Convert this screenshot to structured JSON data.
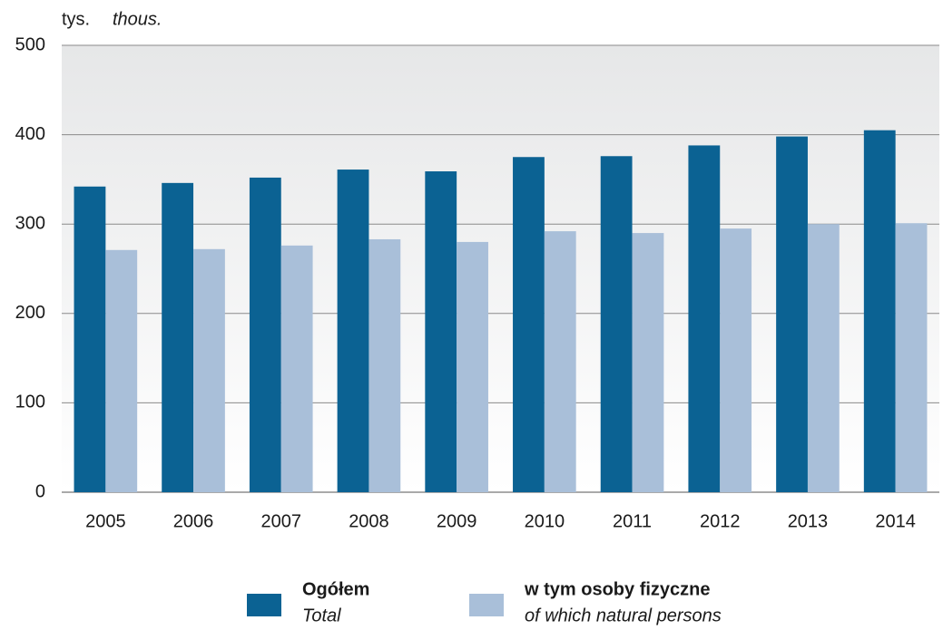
{
  "chart_data": {
    "type": "bar",
    "ylabel": "tys.",
    "ylabel_en": "thous.",
    "categories": [
      "2005",
      "2006",
      "2007",
      "2008",
      "2009",
      "2010",
      "2011",
      "2012",
      "2013",
      "2014"
    ],
    "series": [
      {
        "name": "Ogółem",
        "name_en": "Total",
        "color": "#0b6293",
        "values": [
          342,
          346,
          352,
          361,
          359,
          375,
          376,
          388,
          398,
          405
        ]
      },
      {
        "name": "w tym osoby fizyczne",
        "name_en": "of which natural persons",
        "color": "#a9bfd9",
        "values": [
          271,
          272,
          276,
          283,
          280,
          292,
          290,
          295,
          300,
          301
        ]
      }
    ],
    "ylim": [
      0,
      500
    ],
    "yticks": [
      0,
      100,
      200,
      300,
      400,
      500
    ],
    "grid": true
  }
}
